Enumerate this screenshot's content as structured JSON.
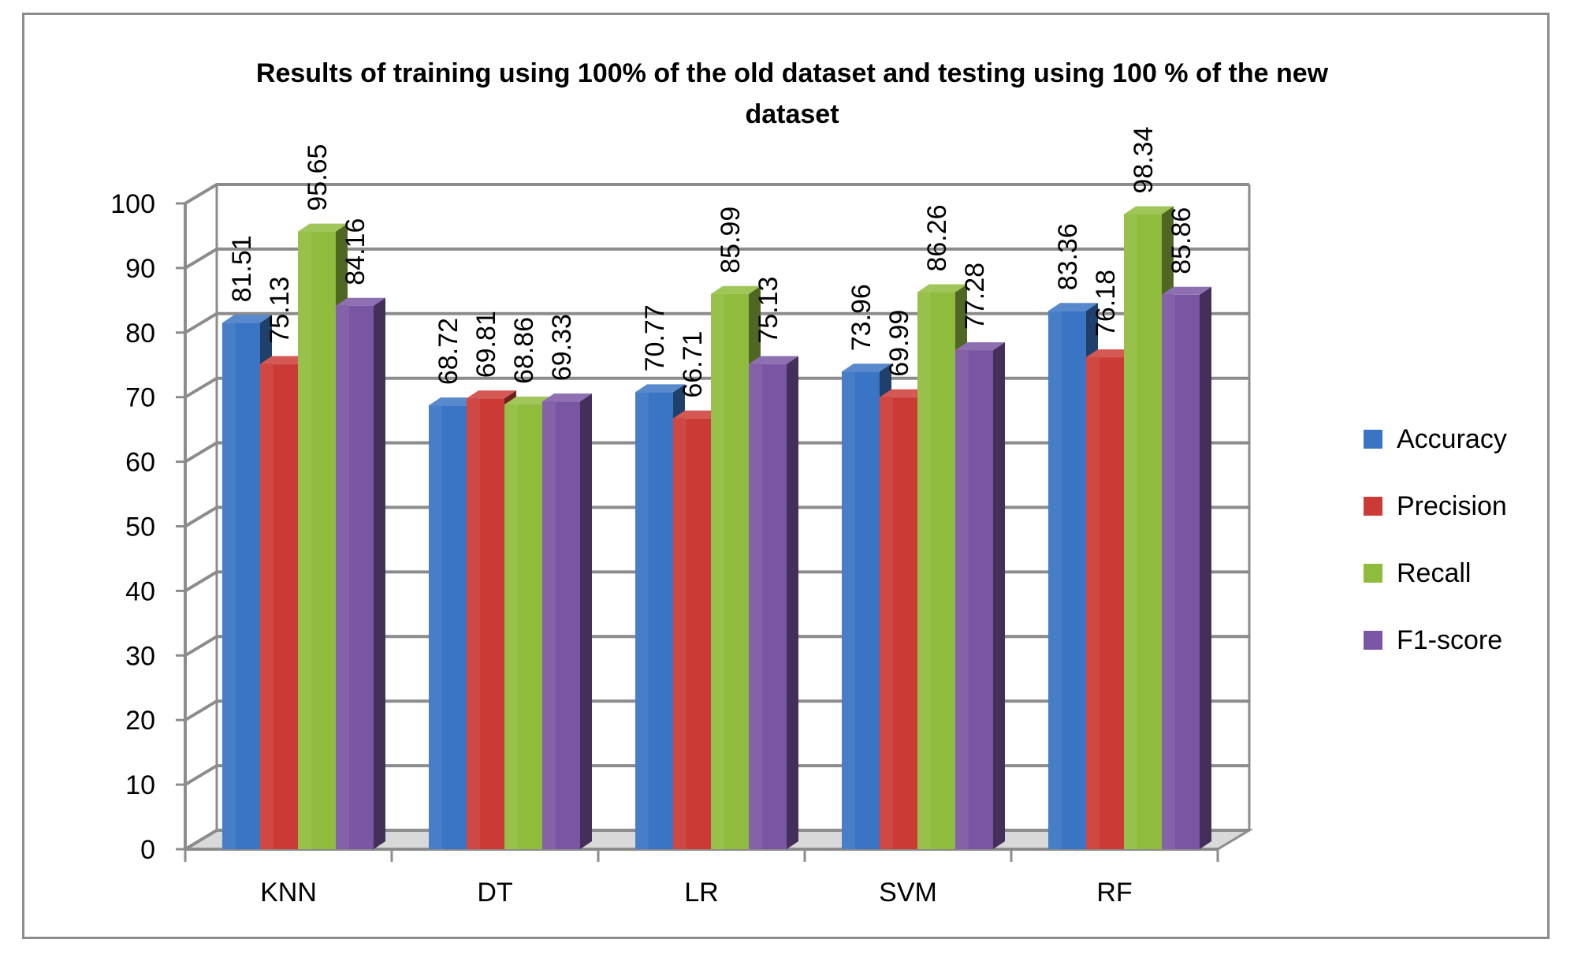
{
  "chart_data": {
    "type": "bar",
    "title": "Results of training using 100% of the old dataset and testing  using 100 % of the new dataset",
    "title_lines": [
      "Results of training using 100% of the old dataset and testing  using 100 % of the new",
      "dataset"
    ],
    "categories": [
      "KNN",
      "DT",
      "LR",
      "SVM",
      "RF"
    ],
    "series": [
      {
        "name": "Accuracy",
        "color": "#3a74c4",
        "values": [
          81.51,
          68.72,
          70.77,
          73.96,
          83.36
        ]
      },
      {
        "name": "Precision",
        "color": "#cc3a36",
        "values": [
          75.13,
          69.81,
          66.71,
          69.99,
          76.18
        ]
      },
      {
        "name": "Recall",
        "color": "#8fbc3d",
        "values": [
          95.65,
          68.86,
          85.99,
          86.26,
          98.34
        ]
      },
      {
        "name": "F1-score",
        "color": "#7a55a3",
        "values": [
          84.16,
          69.33,
          75.13,
          77.28,
          85.86
        ]
      }
    ],
    "data_labels": [
      [
        "81.51",
        "68.72",
        "70.77",
        "73.96",
        "83.36"
      ],
      [
        "75.13",
        "69.81",
        "66.71",
        "69.99",
        "76.18"
      ],
      [
        "95.65",
        "68.86",
        "85.99",
        "86.26",
        "98.34"
      ],
      [
        "84.16",
        "69.33",
        "75.13",
        "77.28",
        "85.86"
      ]
    ],
    "ylim": [
      0,
      100
    ],
    "yticks": [
      "0",
      "10",
      "20",
      "30",
      "40",
      "50",
      "60",
      "70",
      "80",
      "90",
      "100"
    ],
    "xlabel": "",
    "ylabel": "",
    "grid": true,
    "legend_position": "right",
    "style": "3d-clustered-column"
  }
}
